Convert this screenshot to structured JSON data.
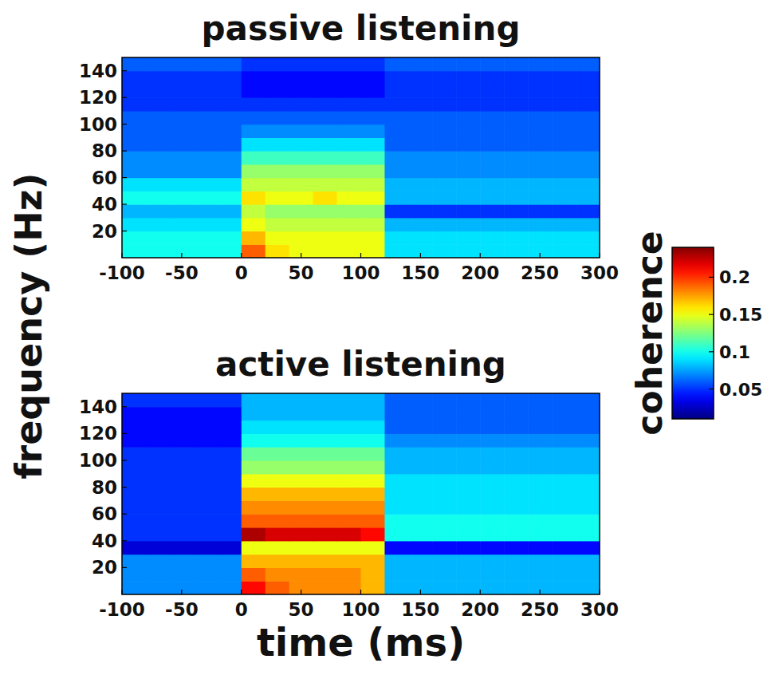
{
  "figure": {
    "y_label": "frequency (Hz)",
    "x_label": "time (ms)",
    "colorbar": {
      "label": "coherence",
      "range": [
        0.01,
        0.24
      ],
      "ticks": [
        0.05,
        0.1,
        0.15,
        0.2
      ]
    }
  },
  "chart_data": [
    {
      "type": "heatmap",
      "title": "passive listening",
      "xbins": [
        -100,
        -80,
        -60,
        -40,
        -20,
        0,
        20,
        40,
        60,
        80,
        100,
        120,
        140,
        160,
        180,
        200,
        220,
        240,
        260,
        280,
        300
      ],
      "ybins": [
        0,
        10,
        20,
        30,
        40,
        50,
        60,
        70,
        80,
        90,
        100,
        110,
        120,
        130,
        140,
        150
      ],
      "xlim": [
        -100,
        300
      ],
      "xticks": [
        -100,
        -50,
        0,
        50,
        100,
        150,
        200,
        250,
        300
      ],
      "ylim": [
        0,
        150
      ],
      "yticks": [
        20,
        40,
        60,
        80,
        100,
        120,
        140
      ],
      "cells": [
        [
          0.1,
          0.1,
          0.1,
          0.1,
          0.1,
          0.19,
          0.16,
          0.15,
          0.15,
          0.15,
          0.15,
          0.09,
          0.09,
          0.09,
          0.09,
          0.09,
          0.09,
          0.09,
          0.09,
          0.09
        ],
        [
          0.1,
          0.1,
          0.1,
          0.1,
          0.1,
          0.17,
          0.15,
          0.15,
          0.15,
          0.15,
          0.15,
          0.09,
          0.09,
          0.09,
          0.09,
          0.09,
          0.09,
          0.09,
          0.09,
          0.09
        ],
        [
          0.09,
          0.09,
          0.09,
          0.09,
          0.09,
          0.15,
          0.14,
          0.14,
          0.14,
          0.14,
          0.14,
          0.08,
          0.08,
          0.08,
          0.08,
          0.08,
          0.08,
          0.08,
          0.08,
          0.08
        ],
        [
          0.08,
          0.08,
          0.08,
          0.08,
          0.08,
          0.14,
          0.13,
          0.13,
          0.13,
          0.13,
          0.13,
          0.05,
          0.05,
          0.05,
          0.05,
          0.05,
          0.05,
          0.05,
          0.05,
          0.05
        ],
        [
          0.1,
          0.1,
          0.1,
          0.1,
          0.1,
          0.16,
          0.15,
          0.15,
          0.16,
          0.15,
          0.15,
          0.08,
          0.08,
          0.08,
          0.08,
          0.08,
          0.08,
          0.08,
          0.08,
          0.08
        ],
        [
          0.09,
          0.09,
          0.09,
          0.09,
          0.09,
          0.14,
          0.14,
          0.14,
          0.14,
          0.14,
          0.14,
          0.08,
          0.08,
          0.08,
          0.08,
          0.08,
          0.08,
          0.08,
          0.08,
          0.08
        ],
        [
          0.07,
          0.07,
          0.07,
          0.07,
          0.07,
          0.13,
          0.13,
          0.13,
          0.13,
          0.13,
          0.13,
          0.07,
          0.07,
          0.07,
          0.07,
          0.07,
          0.07,
          0.07,
          0.07,
          0.07
        ],
        [
          0.07,
          0.07,
          0.07,
          0.07,
          0.07,
          0.11,
          0.11,
          0.11,
          0.11,
          0.11,
          0.11,
          0.07,
          0.07,
          0.07,
          0.07,
          0.07,
          0.07,
          0.07,
          0.07,
          0.07
        ],
        [
          0.06,
          0.06,
          0.06,
          0.06,
          0.06,
          0.09,
          0.09,
          0.09,
          0.09,
          0.09,
          0.09,
          0.06,
          0.06,
          0.06,
          0.06,
          0.06,
          0.06,
          0.06,
          0.06,
          0.06
        ],
        [
          0.06,
          0.06,
          0.06,
          0.06,
          0.06,
          0.07,
          0.07,
          0.07,
          0.07,
          0.07,
          0.07,
          0.06,
          0.06,
          0.06,
          0.06,
          0.06,
          0.06,
          0.06,
          0.06,
          0.06
        ],
        [
          0.06,
          0.06,
          0.06,
          0.06,
          0.06,
          0.06,
          0.06,
          0.06,
          0.06,
          0.06,
          0.06,
          0.06,
          0.06,
          0.06,
          0.06,
          0.06,
          0.06,
          0.06,
          0.06,
          0.06
        ],
        [
          0.05,
          0.05,
          0.05,
          0.05,
          0.05,
          0.05,
          0.05,
          0.05,
          0.05,
          0.05,
          0.05,
          0.05,
          0.05,
          0.05,
          0.05,
          0.05,
          0.05,
          0.05,
          0.05,
          0.05
        ],
        [
          0.05,
          0.05,
          0.05,
          0.05,
          0.05,
          0.04,
          0.04,
          0.04,
          0.04,
          0.04,
          0.04,
          0.05,
          0.05,
          0.05,
          0.05,
          0.05,
          0.05,
          0.05,
          0.05,
          0.05
        ],
        [
          0.05,
          0.05,
          0.05,
          0.05,
          0.05,
          0.04,
          0.04,
          0.04,
          0.04,
          0.04,
          0.04,
          0.05,
          0.05,
          0.05,
          0.05,
          0.05,
          0.05,
          0.05,
          0.05,
          0.05
        ],
        [
          0.06,
          0.06,
          0.06,
          0.06,
          0.06,
          0.05,
          0.05,
          0.05,
          0.05,
          0.05,
          0.05,
          0.06,
          0.06,
          0.06,
          0.06,
          0.06,
          0.06,
          0.06,
          0.06,
          0.06
        ]
      ]
    },
    {
      "type": "heatmap",
      "title": "active listening",
      "xbins": [
        -100,
        -80,
        -60,
        -40,
        -20,
        0,
        20,
        40,
        60,
        80,
        100,
        120,
        140,
        160,
        180,
        200,
        220,
        240,
        260,
        280,
        300
      ],
      "ybins": [
        0,
        10,
        20,
        30,
        40,
        50,
        60,
        70,
        80,
        90,
        100,
        110,
        120,
        130,
        140,
        150
      ],
      "xlim": [
        -100,
        300
      ],
      "xticks": [
        -100,
        -50,
        0,
        50,
        100,
        150,
        200,
        250,
        300
      ],
      "ylim": [
        0,
        150
      ],
      "yticks": [
        20,
        40,
        60,
        80,
        100,
        120,
        140
      ],
      "cells": [
        [
          0.07,
          0.07,
          0.07,
          0.07,
          0.07,
          0.21,
          0.19,
          0.18,
          0.18,
          0.18,
          0.17,
          0.08,
          0.08,
          0.08,
          0.08,
          0.08,
          0.08,
          0.08,
          0.08,
          0.08
        ],
        [
          0.07,
          0.07,
          0.07,
          0.07,
          0.07,
          0.19,
          0.18,
          0.18,
          0.18,
          0.18,
          0.17,
          0.08,
          0.08,
          0.08,
          0.08,
          0.08,
          0.08,
          0.08,
          0.08,
          0.08
        ],
        [
          0.07,
          0.07,
          0.07,
          0.07,
          0.07,
          0.17,
          0.17,
          0.17,
          0.17,
          0.17,
          0.17,
          0.08,
          0.08,
          0.08,
          0.08,
          0.08,
          0.08,
          0.08,
          0.08,
          0.08
        ],
        [
          0.03,
          0.03,
          0.03,
          0.03,
          0.03,
          0.15,
          0.15,
          0.15,
          0.15,
          0.15,
          0.15,
          0.04,
          0.04,
          0.04,
          0.04,
          0.04,
          0.04,
          0.04,
          0.04,
          0.04
        ],
        [
          0.05,
          0.05,
          0.05,
          0.05,
          0.05,
          0.23,
          0.22,
          0.22,
          0.22,
          0.22,
          0.21,
          0.1,
          0.1,
          0.1,
          0.1,
          0.1,
          0.1,
          0.1,
          0.1,
          0.1
        ],
        [
          0.05,
          0.05,
          0.05,
          0.05,
          0.05,
          0.19,
          0.19,
          0.19,
          0.19,
          0.19,
          0.19,
          0.1,
          0.1,
          0.1,
          0.1,
          0.1,
          0.1,
          0.1,
          0.1,
          0.1
        ],
        [
          0.05,
          0.05,
          0.05,
          0.05,
          0.05,
          0.18,
          0.18,
          0.18,
          0.18,
          0.18,
          0.18,
          0.09,
          0.09,
          0.09,
          0.09,
          0.09,
          0.09,
          0.09,
          0.09,
          0.09
        ],
        [
          0.05,
          0.05,
          0.05,
          0.05,
          0.05,
          0.17,
          0.17,
          0.17,
          0.17,
          0.17,
          0.17,
          0.09,
          0.09,
          0.09,
          0.09,
          0.09,
          0.09,
          0.09,
          0.09,
          0.09
        ],
        [
          0.05,
          0.05,
          0.05,
          0.05,
          0.05,
          0.15,
          0.15,
          0.15,
          0.15,
          0.15,
          0.15,
          0.09,
          0.09,
          0.09,
          0.09,
          0.09,
          0.09,
          0.09,
          0.09,
          0.09
        ],
        [
          0.05,
          0.05,
          0.05,
          0.05,
          0.05,
          0.13,
          0.13,
          0.13,
          0.13,
          0.13,
          0.13,
          0.08,
          0.08,
          0.08,
          0.08,
          0.08,
          0.08,
          0.08,
          0.08,
          0.08
        ],
        [
          0.05,
          0.05,
          0.05,
          0.05,
          0.05,
          0.12,
          0.12,
          0.12,
          0.12,
          0.12,
          0.12,
          0.08,
          0.08,
          0.08,
          0.08,
          0.08,
          0.08,
          0.08,
          0.08,
          0.08
        ],
        [
          0.04,
          0.04,
          0.04,
          0.04,
          0.04,
          0.1,
          0.1,
          0.1,
          0.1,
          0.1,
          0.1,
          0.07,
          0.07,
          0.07,
          0.07,
          0.07,
          0.07,
          0.07,
          0.07,
          0.07
        ],
        [
          0.04,
          0.04,
          0.04,
          0.04,
          0.04,
          0.09,
          0.09,
          0.09,
          0.09,
          0.09,
          0.09,
          0.06,
          0.06,
          0.06,
          0.06,
          0.06,
          0.06,
          0.06,
          0.06,
          0.06
        ],
        [
          0.04,
          0.04,
          0.04,
          0.04,
          0.04,
          0.08,
          0.08,
          0.08,
          0.08,
          0.08,
          0.08,
          0.06,
          0.06,
          0.06,
          0.06,
          0.06,
          0.06,
          0.06,
          0.06,
          0.06
        ],
        [
          0.05,
          0.05,
          0.05,
          0.05,
          0.05,
          0.08,
          0.08,
          0.08,
          0.08,
          0.08,
          0.08,
          0.06,
          0.06,
          0.06,
          0.06,
          0.06,
          0.06,
          0.06,
          0.06,
          0.06
        ]
      ]
    }
  ]
}
